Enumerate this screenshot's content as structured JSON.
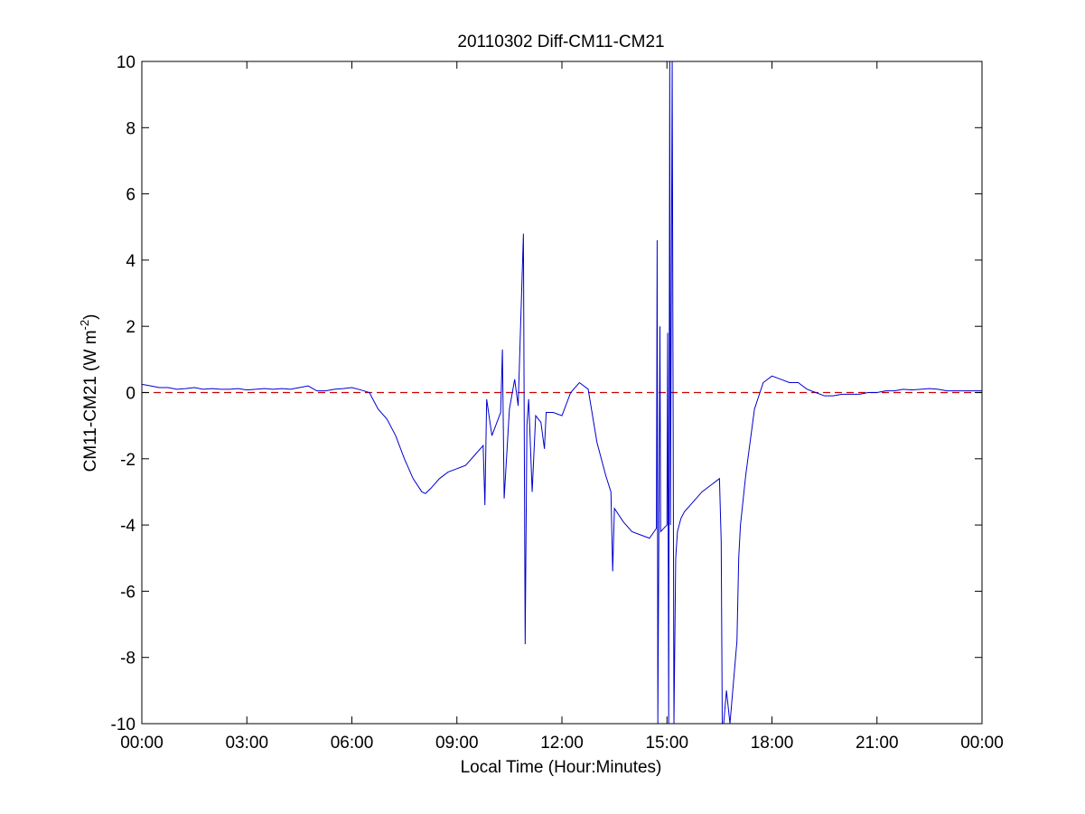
{
  "chart_data": {
    "type": "line",
    "title": "20110302 Diff-CM11-CM21",
    "xlabel": "Local Time (Hour:Minutes)",
    "ylabel_prefix": "CM11-CM21 (W m",
    "ylabel_exponent": "-2",
    "ylabel_suffix": ")",
    "xlim": [
      0,
      24
    ],
    "ylim": [
      -10,
      10
    ],
    "x_unit": "hours",
    "x_ticks": [
      0,
      3,
      6,
      9,
      12,
      15,
      18,
      21,
      24
    ],
    "x_tick_labels": [
      "00:00",
      "03:00",
      "06:00",
      "09:00",
      "12:00",
      "15:00",
      "18:00",
      "21:00",
      "00:00"
    ],
    "y_ticks": [
      -10,
      -8,
      -6,
      -4,
      -2,
      0,
      2,
      4,
      6,
      8,
      10
    ],
    "y_tick_labels": [
      "-10",
      "-8",
      "-6",
      "-4",
      "-2",
      "0",
      "2",
      "4",
      "6",
      "8",
      "10"
    ],
    "grid": false,
    "reference_line": {
      "y": 0,
      "color": "#cc0000",
      "style": "dashed"
    },
    "series": [
      {
        "color": "#0000cc",
        "x": [
          0.0,
          0.25,
          0.5,
          0.75,
          1.0,
          1.25,
          1.5,
          1.75,
          2.0,
          2.25,
          2.5,
          2.75,
          3.0,
          3.25,
          3.5,
          3.75,
          4.0,
          4.25,
          4.5,
          4.75,
          5.0,
          5.25,
          5.5,
          5.75,
          6.0,
          6.25,
          6.5,
          6.6,
          6.75,
          7.0,
          7.25,
          7.5,
          7.75,
          8.0,
          8.1,
          8.25,
          8.5,
          8.75,
          9.0,
          9.25,
          9.5,
          9.75,
          9.8,
          9.85,
          10.0,
          10.25,
          10.3,
          10.35,
          10.5,
          10.65,
          10.75,
          10.9,
          10.95,
          11.0,
          11.05,
          11.15,
          11.25,
          11.4,
          11.5,
          11.55,
          11.75,
          12.0,
          12.25,
          12.5,
          12.75,
          13.0,
          13.25,
          13.4,
          13.45,
          13.5,
          13.75,
          14.0,
          14.25,
          14.5,
          14.7,
          14.72,
          14.74,
          14.8,
          14.82,
          15.0,
          15.02,
          15.05,
          15.08,
          15.1,
          15.15,
          15.2,
          15.22,
          15.25,
          15.3,
          15.35,
          15.4,
          15.5,
          15.75,
          16.0,
          16.25,
          16.5,
          16.55,
          16.58,
          16.62,
          16.7,
          16.8,
          17.0,
          17.05,
          17.1,
          17.25,
          17.5,
          17.75,
          18.0,
          18.25,
          18.5,
          18.75,
          19.0,
          19.25,
          19.5,
          19.75,
          20.0,
          20.25,
          20.5,
          20.75,
          21.0,
          21.25,
          21.5,
          21.75,
          22.0,
          22.25,
          22.5,
          22.75,
          23.0,
          23.25,
          23.5,
          23.75,
          24.0
        ],
        "y": [
          0.25,
          0.2,
          0.15,
          0.15,
          0.1,
          0.12,
          0.15,
          0.1,
          0.12,
          0.1,
          0.1,
          0.12,
          0.08,
          0.1,
          0.12,
          0.1,
          0.12,
          0.1,
          0.15,
          0.2,
          0.05,
          0.05,
          0.1,
          0.12,
          0.15,
          0.08,
          0.0,
          -0.2,
          -0.5,
          -0.8,
          -1.3,
          -2.0,
          -2.6,
          -3.0,
          -3.05,
          -2.9,
          -2.6,
          -2.4,
          -2.3,
          -2.2,
          -1.9,
          -1.6,
          -3.4,
          -0.2,
          -1.3,
          -0.6,
          1.3,
          -3.2,
          -0.5,
          0.4,
          -0.4,
          4.8,
          -7.6,
          -1.0,
          -0.2,
          -3.0,
          -0.7,
          -0.9,
          -1.7,
          -0.6,
          -0.6,
          -0.7,
          0.0,
          0.3,
          0.1,
          -1.5,
          -2.5,
          -3.0,
          -5.4,
          -3.5,
          -3.9,
          -4.2,
          -4.3,
          -4.4,
          -4.1,
          4.6,
          -10.0,
          2.0,
          -4.2,
          -4.0,
          1.8,
          -10.0,
          10.0,
          -4.0,
          10.0,
          -10.0,
          -8.0,
          -5.0,
          -4.2,
          -4.0,
          -3.8,
          -3.6,
          -3.3,
          -3.0,
          -2.8,
          -2.6,
          -4.5,
          -10.0,
          -10.0,
          -9.0,
          -10.0,
          -7.5,
          -5.0,
          -4.0,
          -2.5,
          -0.5,
          0.3,
          0.5,
          0.4,
          0.3,
          0.3,
          0.1,
          0.0,
          -0.1,
          -0.1,
          -0.05,
          -0.05,
          -0.05,
          0.0,
          0.0,
          0.05,
          0.05,
          0.1,
          0.08,
          0.1,
          0.12,
          0.1,
          0.05,
          0.05,
          0.05,
          0.05,
          0.05
        ]
      }
    ]
  }
}
